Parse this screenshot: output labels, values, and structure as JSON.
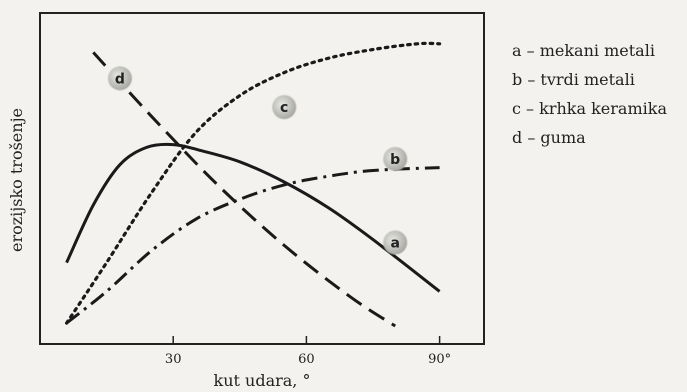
{
  "chart_data": {
    "type": "line",
    "xlabel": "kut udara, °",
    "ylabel": "erozijsko trošenje",
    "xlim": [
      0,
      100
    ],
    "ylim": [
      0,
      100
    ],
    "grid": false,
    "legend_position": "right",
    "x_ticks": [
      {
        "value": 30,
        "label": "30"
      },
      {
        "value": 60,
        "label": "60"
      },
      {
        "value": 90,
        "label": "90°"
      }
    ],
    "legend": [
      {
        "key": "a",
        "text": "a – mekani metali"
      },
      {
        "key": "b",
        "text": "b – tvrdi metali"
      },
      {
        "key": "c",
        "text": "c – krhka keramika"
      },
      {
        "key": "d",
        "text": "d – guma"
      }
    ],
    "series": [
      {
        "key": "a",
        "label": "a",
        "style": "solid",
        "label_at": [
          80,
          29
        ],
        "x": [
          6,
          12,
          18,
          24,
          30,
          36,
          45,
          55,
          65,
          75,
          90
        ],
        "y": [
          22,
          42,
          56,
          62,
          63,
          61,
          57,
          50,
          41,
          30,
          12
        ]
      },
      {
        "key": "b",
        "label": "b",
        "style": "dash-dot",
        "label_at": [
          80,
          58
        ],
        "x": [
          6,
          15,
          25,
          35,
          45,
          55,
          65,
          75,
          90
        ],
        "y": [
          1,
          12,
          26,
          37,
          44,
          49,
          52,
          54,
          55
        ]
      },
      {
        "key": "c",
        "label": "c",
        "style": "dotted",
        "label_at": [
          55,
          76
        ],
        "x": [
          6,
          15,
          25,
          35,
          45,
          55,
          65,
          75,
          85,
          90
        ],
        "y": [
          1,
          22,
          46,
          67,
          80,
          88,
          93,
          96,
          98,
          98
        ]
      },
      {
        "key": "d",
        "label": "d",
        "style": "dashed",
        "label_at": [
          18,
          86
        ],
        "x": [
          12,
          25,
          40,
          55,
          70,
          80
        ],
        "y": [
          95,
          73,
          49,
          28,
          10,
          0
        ]
      }
    ]
  }
}
